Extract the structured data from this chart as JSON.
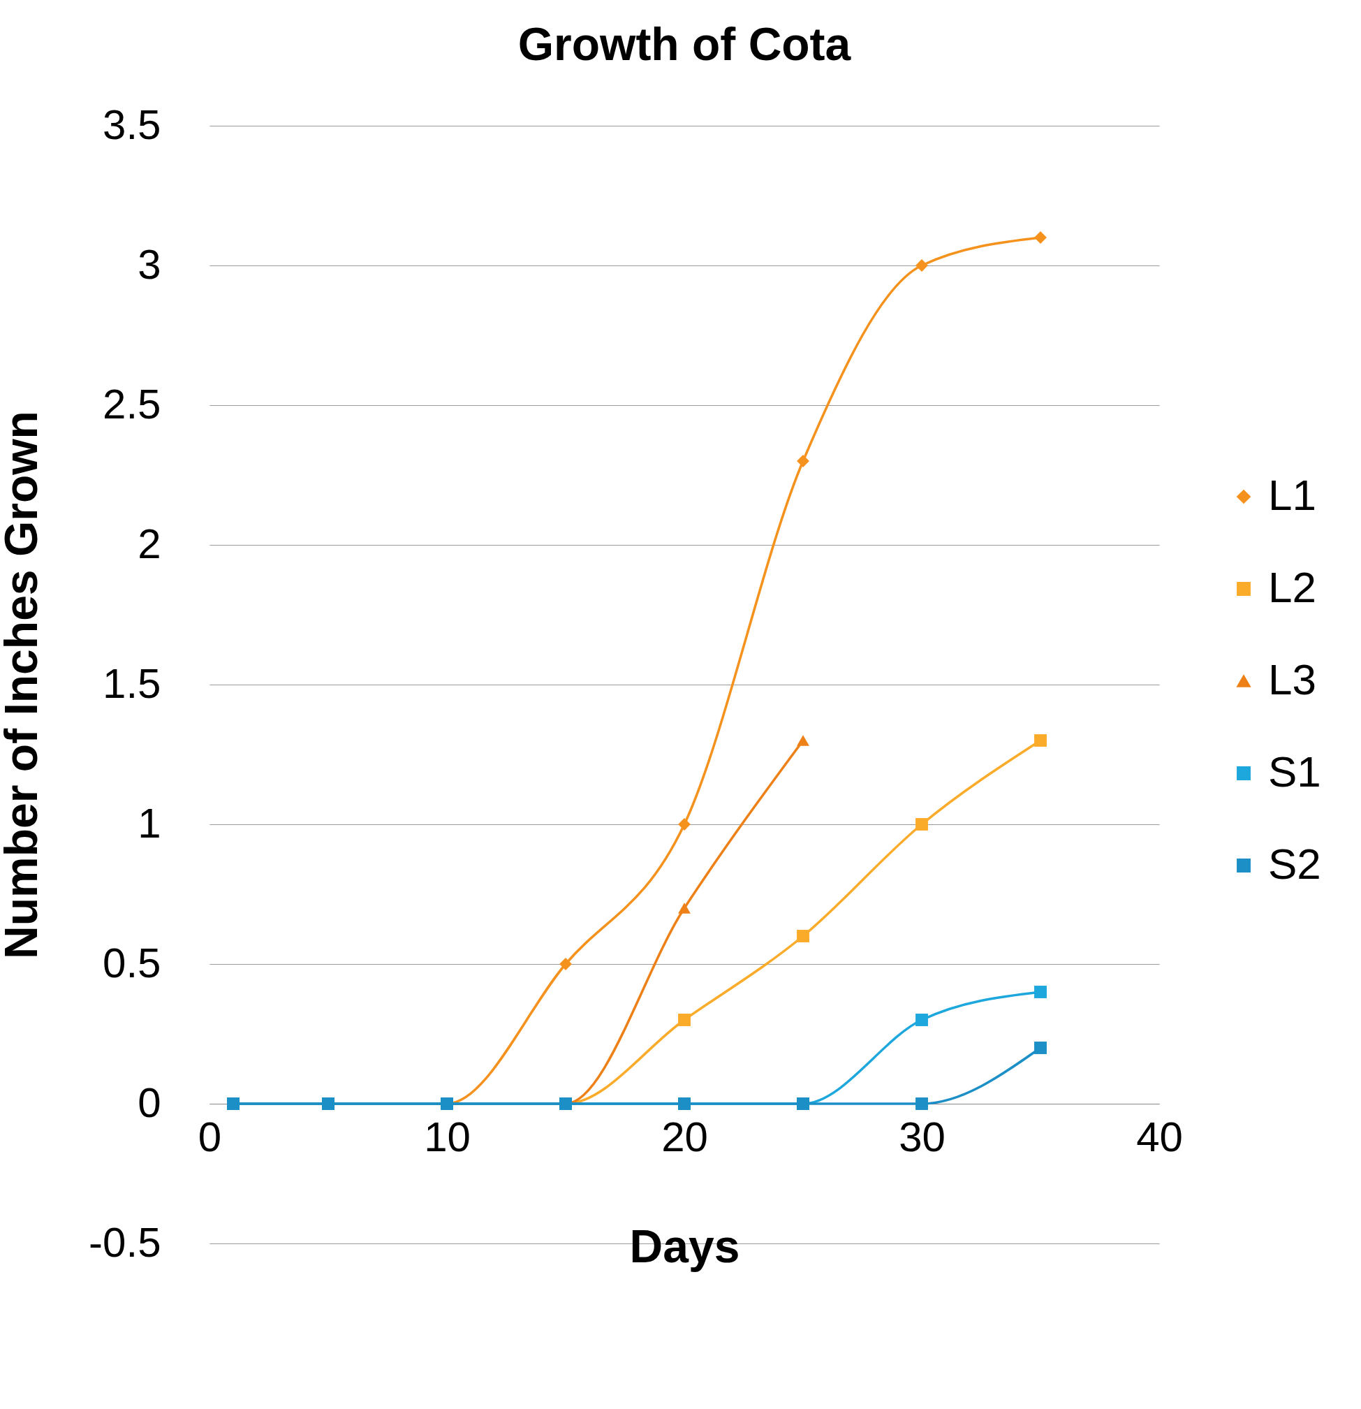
{
  "chart_data": {
    "type": "line",
    "title": "Growth of Cota",
    "xlabel": "Days",
    "ylabel": "Number of Inches Grown",
    "x": [
      1,
      5,
      10,
      15,
      20,
      25,
      30,
      35
    ],
    "series": [
      {
        "name": "L1",
        "color": "#f5921e",
        "marker": "diamond",
        "values": [
          0,
          0,
          0,
          0.5,
          1,
          2.3,
          3,
          3.1
        ]
      },
      {
        "name": "L2",
        "color": "#fbab2a",
        "marker": "square",
        "values": [
          0,
          0,
          0,
          0,
          0.3,
          0.6,
          1,
          1.3
        ]
      },
      {
        "name": "L3",
        "color": "#ee8018",
        "marker": "triangle",
        "values": [
          0,
          0,
          0,
          0,
          0.7,
          1.3,
          null,
          null
        ]
      },
      {
        "name": "S1",
        "color": "#1da7dd",
        "marker": "square",
        "values": [
          0,
          0,
          0,
          0,
          0,
          0,
          0.3,
          0.4
        ]
      },
      {
        "name": "S2",
        "color": "#1b8fc6",
        "marker": "square",
        "values": [
          0,
          0,
          0,
          0,
          0,
          0,
          0,
          0.2
        ]
      }
    ],
    "xlim": [
      0,
      40
    ],
    "xticks": [
      0,
      10,
      20,
      30,
      40
    ],
    "ylim": [
      -0.5,
      3.5
    ],
    "yticks": [
      -0.5,
      0,
      0.5,
      1,
      1.5,
      2,
      2.5,
      3,
      3.5
    ],
    "grid": "y",
    "legend": "right",
    "line_style": "solid"
  }
}
